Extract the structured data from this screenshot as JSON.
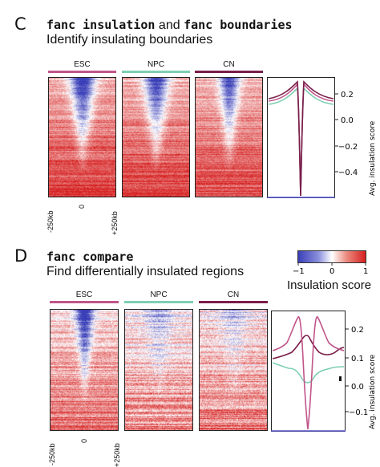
{
  "panel_c": {
    "letter": "C",
    "cmd1": "fanc insulation",
    "and_word": "and",
    "cmd2": "fanc boundaries",
    "subtitle": "Identify insulating boundaries",
    "columns": [
      {
        "label": "ESC",
        "color": "#c0558a"
      },
      {
        "label": "NPC",
        "color": "#7ecfb3"
      },
      {
        "label": "CN",
        "color": "#7a1e4a"
      }
    ],
    "xticks": [
      "-250kb",
      "0",
      "+250kb"
    ],
    "profile": {
      "ylabel": "Avg. insulation score",
      "yticks": [
        "0.2",
        "0.0",
        "−0.2",
        "−0.4"
      ]
    }
  },
  "panel_d": {
    "letter": "D",
    "cmd": "fanc compare",
    "subtitle": "Find differentially insulated regions",
    "columns": [
      {
        "label": "ESC",
        "color": "#c0558a"
      },
      {
        "label": "NPC",
        "color": "#7ecfb3"
      },
      {
        "label": "CN",
        "color": "#7a1e4a"
      }
    ],
    "xticks": [
      "-250kb",
      "0",
      "+250kb"
    ],
    "profile": {
      "ylabel": "Avg. insulation score",
      "yticks": [
        "0.2",
        "0.1",
        "0.0",
        "−0.1"
      ]
    },
    "colorbar": {
      "ticks": [
        "−1",
        "0",
        "1"
      ],
      "label": "Insulation score"
    }
  },
  "colors": {
    "low": "#3a3fb8",
    "mid": "#ffffff",
    "high": "#d62020",
    "esc": "#c0558a",
    "npc": "#7ecfb3",
    "cn": "#7a1e4a"
  }
}
